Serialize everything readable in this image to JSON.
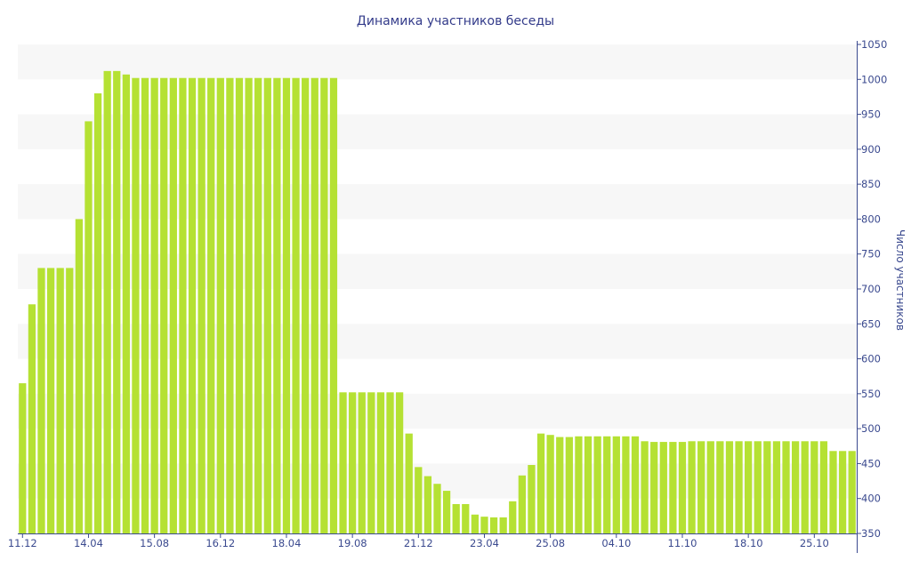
{
  "chart_data": {
    "type": "bar",
    "title": "Динамика участников беседы",
    "xlabel": "",
    "ylabel": "Число участников",
    "y_axis_side": "right",
    "ylim": [
      350,
      1050
    ],
    "y_ticks": [
      350,
      400,
      450,
      500,
      550,
      600,
      650,
      700,
      750,
      800,
      850,
      900,
      950,
      1000,
      1050
    ],
    "grid": "alternating horizontal bands",
    "colors": {
      "bar": "#b5e133",
      "axis": "#3b4a8f",
      "title": "#333b8a",
      "band": "#f7f7f7"
    },
    "x_tick_labels": [
      {
        "index": 0,
        "label": "11.12"
      },
      {
        "index": 7,
        "label": "14.04"
      },
      {
        "index": 14,
        "label": "15.08"
      },
      {
        "index": 21,
        "label": "16.12"
      },
      {
        "index": 28,
        "label": "18.04"
      },
      {
        "index": 35,
        "label": "19.08"
      },
      {
        "index": 42,
        "label": "21.12"
      },
      {
        "index": 49,
        "label": "23.04"
      },
      {
        "index": 56,
        "label": "25.08"
      },
      {
        "index": 63,
        "label": "04.10"
      },
      {
        "index": 70,
        "label": "11.10"
      },
      {
        "index": 77,
        "label": "18.10"
      },
      {
        "index": 84,
        "label": "25.10"
      }
    ],
    "values": [
      565,
      678,
      730,
      730,
      730,
      730,
      800,
      940,
      980,
      1012,
      1012,
      1007,
      1002,
      1002,
      1002,
      1002,
      1002,
      1002,
      1002,
      1002,
      1002,
      1002,
      1002,
      1002,
      1002,
      1002,
      1002,
      1002,
      1002,
      1002,
      1002,
      1002,
      1002,
      1002,
      552,
      552,
      552,
      552,
      552,
      552,
      552,
      493,
      445,
      432,
      421,
      411,
      392,
      392,
      377,
      374,
      373,
      373,
      396,
      433,
      448,
      493,
      491,
      488,
      488,
      489,
      489,
      489,
      489,
      489,
      489,
      489,
      482,
      481,
      481,
      481,
      481,
      482,
      482,
      482,
      482,
      482,
      482,
      482,
      482,
      482,
      482,
      482,
      482,
      482,
      482,
      482,
      468,
      468,
      468
    ]
  }
}
